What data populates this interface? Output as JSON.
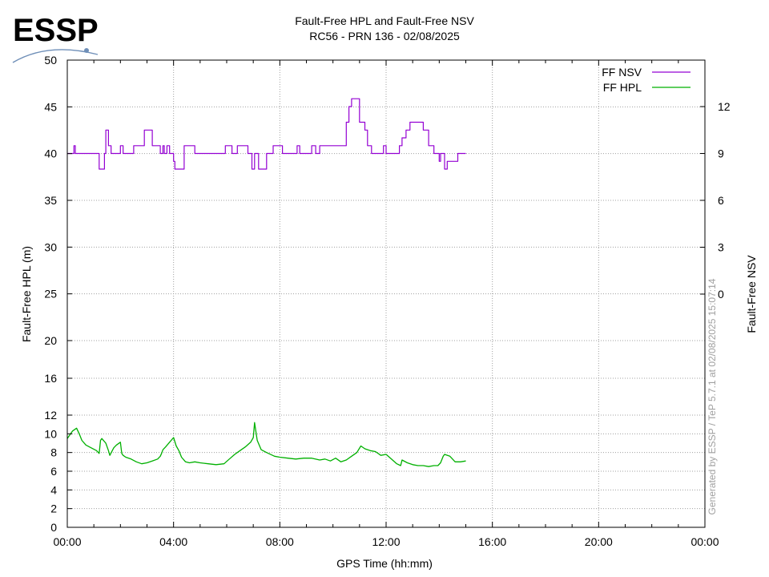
{
  "logo": {
    "text": "ESSP",
    "color": "#6f8fb8"
  },
  "watermark": "Generated by ESSP / TeP 5.7.1 at 02/08/2025 15:07:14",
  "chart_data": {
    "type": "line",
    "title": "Fault-Free HPL and Fault-Free NSV",
    "subtitle": "RC56 - PRN 136 - 02/08/2025",
    "xlabel": "GPS Time (hh:mm)",
    "ylabel": "Fault-Free HPL (m)",
    "y2label": "Fault-Free NSV",
    "x_unit": "hours",
    "xlim": [
      0,
      24
    ],
    "x_ticks": [
      {
        "v": 0,
        "label": "00:00"
      },
      {
        "v": 4,
        "label": "04:00"
      },
      {
        "v": 8,
        "label": "08:00"
      },
      {
        "v": 12,
        "label": "12:00"
      },
      {
        "v": 16,
        "label": "16:00"
      },
      {
        "v": 20,
        "label": "20:00"
      },
      {
        "v": 24,
        "label": "00:00"
      }
    ],
    "y_ticks": [
      0,
      2,
      4,
      6,
      8,
      10,
      12,
      16,
      20,
      25,
      30,
      35,
      40,
      45,
      50
    ],
    "y2_ticks": [
      0,
      3,
      6,
      9,
      12
    ],
    "grid": true,
    "legend_position": "top-right",
    "series": [
      {
        "name": "FF NSV",
        "axis": "y2",
        "color": "#9400d3",
        "step": true,
        "x": [
          0,
          0.25,
          0.3,
          1.2,
          1.4,
          1.45,
          1.55,
          1.65,
          2.0,
          2.1,
          2.5,
          2.9,
          3.2,
          3.5,
          3.6,
          3.65,
          3.75,
          3.85,
          4.0,
          4.05,
          4.1,
          4.4,
          4.8,
          5.8,
          5.95,
          6.2,
          6.4,
          6.8,
          6.95,
          7.0,
          7.05,
          7.2,
          7.5,
          7.7,
          7.75,
          8.1,
          8.65,
          8.75,
          9.2,
          9.35,
          9.5,
          9.6,
          10.0,
          10.5,
          10.6,
          10.7,
          11.0,
          11.2,
          11.3,
          11.45,
          11.8,
          11.9,
          12.0,
          12.5,
          12.6,
          12.75,
          12.9,
          13.4,
          13.6,
          13.8,
          14.0,
          14.05,
          14.2,
          14.3,
          14.7,
          15.0
        ],
        "values": [
          9,
          9.5,
          9,
          8,
          9,
          10.5,
          9.5,
          9,
          9.5,
          9,
          9.5,
          10.5,
          9.5,
          9,
          9.5,
          9,
          9.5,
          9,
          8.5,
          8,
          8,
          9.5,
          9,
          9,
          9.5,
          9,
          9.5,
          9,
          8,
          8,
          9,
          8,
          9,
          9,
          9.5,
          9,
          9.5,
          9,
          9.5,
          9,
          9.5,
          9.5,
          9.5,
          11,
          12,
          12.5,
          11,
          10.5,
          9.5,
          9,
          9,
          9.5,
          9,
          9.5,
          10,
          10.5,
          11,
          10.5,
          9.5,
          9,
          8.5,
          9,
          8,
          8.5,
          9,
          9
        ]
      },
      {
        "name": "FF HPL",
        "axis": "y",
        "color": "#00b000",
        "step": false,
        "x": [
          0,
          0.2,
          0.35,
          0.45,
          0.55,
          0.7,
          0.9,
          1.1,
          1.2,
          1.25,
          1.3,
          1.45,
          1.55,
          1.6,
          1.75,
          1.85,
          2.0,
          2.05,
          2.1,
          2.2,
          2.4,
          2.6,
          2.8,
          3.0,
          3.2,
          3.4,
          3.5,
          3.55,
          3.6,
          3.7,
          3.85,
          4.0,
          4.1,
          4.2,
          4.3,
          4.45,
          4.6,
          4.8,
          5.0,
          5.3,
          5.6,
          5.9,
          6.1,
          6.3,
          6.5,
          6.7,
          6.9,
          7.0,
          7.05,
          7.15,
          7.3,
          7.5,
          7.8,
          8.0,
          8.3,
          8.6,
          8.9,
          9.2,
          9.5,
          9.7,
          9.9,
          10.1,
          10.3,
          10.5,
          10.7,
          10.9,
          11.05,
          11.2,
          11.4,
          11.6,
          11.8,
          12.0,
          12.2,
          12.4,
          12.55,
          12.6,
          12.8,
          13.0,
          13.2,
          13.4,
          13.6,
          13.8,
          13.95,
          14.05,
          14.15,
          14.2,
          14.4,
          14.6,
          14.8,
          15.0
        ],
        "values": [
          9.5,
          10.3,
          10.6,
          10.0,
          9.3,
          8.8,
          8.5,
          8.2,
          7.9,
          9.3,
          9.5,
          9.0,
          8.2,
          7.7,
          8.5,
          8.8,
          9.1,
          7.9,
          7.7,
          7.5,
          7.3,
          7.0,
          6.8,
          6.9,
          7.1,
          7.3,
          7.6,
          7.9,
          8.3,
          8.6,
          9.1,
          9.6,
          8.7,
          8.2,
          7.5,
          7.0,
          6.9,
          7.0,
          6.9,
          6.8,
          6.7,
          6.8,
          7.3,
          7.8,
          8.2,
          8.6,
          9.1,
          9.6,
          11.2,
          9.3,
          8.3,
          8.0,
          7.6,
          7.5,
          7.4,
          7.3,
          7.4,
          7.4,
          7.2,
          7.3,
          7.1,
          7.4,
          7.0,
          7.2,
          7.6,
          8.0,
          8.7,
          8.4,
          8.2,
          8.1,
          7.7,
          7.8,
          7.3,
          6.8,
          6.6,
          7.2,
          6.9,
          6.7,
          6.6,
          6.6,
          6.5,
          6.6,
          6.6,
          6.9,
          7.6,
          7.8,
          7.6,
          7.0,
          7.0,
          7.1
        ]
      }
    ]
  }
}
